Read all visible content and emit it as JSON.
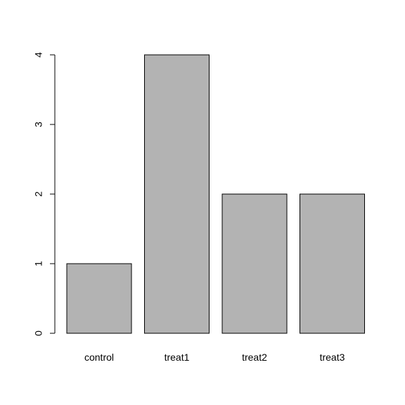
{
  "chart_data": {
    "type": "bar",
    "categories": [
      "control",
      "treat1",
      "treat2",
      "treat3"
    ],
    "values": [
      1,
      4,
      2,
      2
    ],
    "ylim": [
      0,
      4
    ],
    "yticks": [
      0,
      1,
      2,
      3,
      4
    ],
    "bar_color": "#b3b3b3",
    "bar_border_color": "#000000",
    "grid": false,
    "title": "",
    "xlabel": "",
    "ylabel": ""
  }
}
